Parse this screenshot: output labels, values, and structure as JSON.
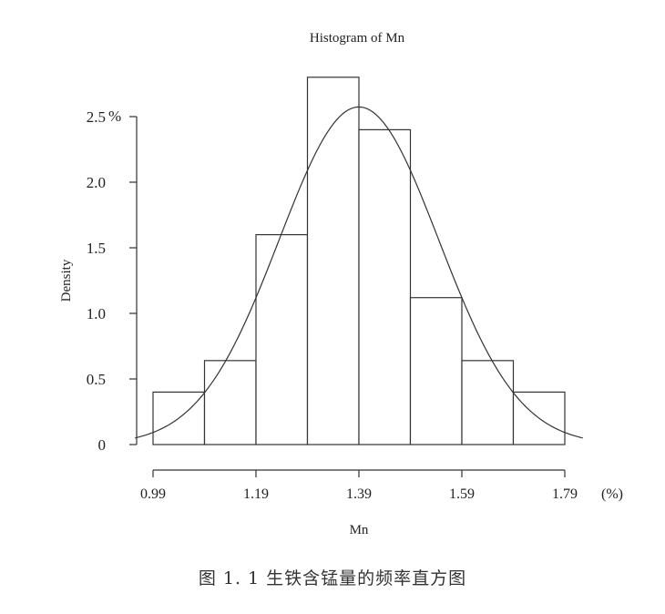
{
  "figure_caption": "图 1. 1   生铁含锰量的频率直方图",
  "chart_data": {
    "type": "bar",
    "title": "Histogram of Mn",
    "xlabel": "Mn",
    "ylabel": "Density",
    "x_unit_label": "(%)",
    "y_unit_label": "%",
    "bins": [
      {
        "start": 0.99,
        "end": 1.09,
        "density": 0.4
      },
      {
        "start": 1.09,
        "end": 1.19,
        "density": 0.64
      },
      {
        "start": 1.19,
        "end": 1.29,
        "density": 1.6
      },
      {
        "start": 1.29,
        "end": 1.39,
        "density": 2.8
      },
      {
        "start": 1.39,
        "end": 1.49,
        "density": 2.4
      },
      {
        "start": 1.49,
        "end": 1.59,
        "density": 1.12
      },
      {
        "start": 1.59,
        "end": 1.69,
        "density": 0.64
      },
      {
        "start": 1.69,
        "end": 1.79,
        "density": 0.4
      }
    ],
    "x_ticks": [
      0.99,
      1.19,
      1.39,
      1.59,
      1.79
    ],
    "x_tick_labels": [
      "0.99",
      "1.19",
      "1.39",
      "1.59",
      "1.79"
    ],
    "y_ticks": [
      0,
      0.5,
      1.0,
      1.5,
      2.0,
      2.5
    ],
    "y_tick_labels": [
      "0",
      "0.5",
      "1.0",
      "1.5",
      "2.0",
      "2.5"
    ],
    "xlim": [
      0.95,
      1.83
    ],
    "ylim": [
      0,
      2.8
    ],
    "normal_curve": {
      "mean": 1.39,
      "sd": 0.155
    },
    "grid": false,
    "legend": "none"
  }
}
